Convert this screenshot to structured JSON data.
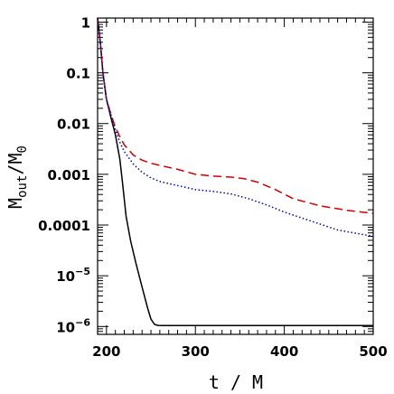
{
  "chart_data": {
    "type": "line",
    "title": "",
    "xlabel": "t / M",
    "ylabel_main": "M",
    "ylabel_sub1": "out",
    "ylabel_sep": "/M",
    "ylabel_sub2": "0",
    "xlim": [
      190,
      500
    ],
    "ylim": [
      7e-07,
      1.2
    ],
    "yscale": "log",
    "grid": false,
    "x_ticks": [
      {
        "value": 200,
        "label": "200"
      },
      {
        "value": 300,
        "label": "300"
      },
      {
        "value": 400,
        "label": "400"
      },
      {
        "value": 500,
        "label": "500"
      }
    ],
    "y_ticks": [
      {
        "value": 1,
        "label": "1"
      },
      {
        "value": 0.1,
        "label": "0.1"
      },
      {
        "value": 0.01,
        "label": "0.01"
      },
      {
        "value": 0.001,
        "label": "0.001"
      },
      {
        "value": 0.0001,
        "label": "0.0001"
      },
      {
        "value": 1e-05,
        "label_base": "10",
        "label_exp": "−5"
      },
      {
        "value": 1e-06,
        "label_base": "10",
        "label_exp": "−6"
      }
    ],
    "series": [
      {
        "color": "#000000",
        "dash": "solid",
        "x": [
          190,
          193,
          196,
          200,
          205,
          210,
          215,
          218,
          222,
          227,
          233,
          240,
          246,
          250,
          254,
          258,
          263,
          280,
          320,
          400,
          500
        ],
        "y": [
          1.2,
          0.4,
          0.1,
          0.03,
          0.013,
          0.006,
          0.002,
          0.0007,
          0.00015,
          5e-05,
          1.8e-05,
          6e-06,
          2.4e-06,
          1.4e-06,
          1.1e-06,
          1.05e-06,
          1.04e-06,
          1.04e-06,
          1.04e-06,
          1.04e-06,
          1.04e-06
        ]
      },
      {
        "color": "#d00000",
        "dash": "dashed",
        "x": [
          190,
          193,
          196,
          200,
          205,
          210,
          215,
          220,
          230,
          240,
          250,
          260,
          280,
          300,
          320,
          340,
          355,
          370,
          390,
          410,
          440,
          470,
          500
        ],
        "y": [
          1.2,
          0.4,
          0.1,
          0.03,
          0.015,
          0.0085,
          0.0055,
          0.0038,
          0.0024,
          0.0019,
          0.00165,
          0.0015,
          0.00125,
          0.001,
          0.00092,
          0.00088,
          0.00082,
          0.0007,
          0.0005,
          0.00033,
          0.00024,
          0.000195,
          0.00017
        ]
      },
      {
        "color": "#0000c8",
        "dash": "dotted",
        "x": [
          190,
          193,
          196,
          200,
          205,
          210,
          215,
          220,
          230,
          240,
          250,
          260,
          280,
          300,
          320,
          340,
          360,
          380,
          400,
          430,
          460,
          500
        ],
        "y": [
          1.2,
          0.4,
          0.1,
          0.03,
          0.015,
          0.0075,
          0.0043,
          0.0028,
          0.0016,
          0.0011,
          0.00085,
          0.00072,
          0.0006,
          0.0005,
          0.00046,
          0.00041,
          0.00033,
          0.00025,
          0.00018,
          0.00012,
          8e-05,
          6e-05
        ]
      }
    ]
  }
}
